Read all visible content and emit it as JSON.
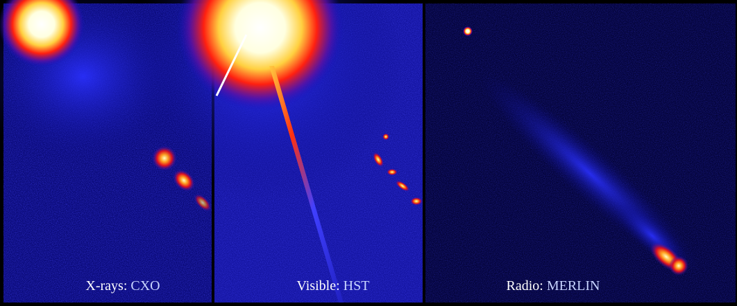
{
  "panels": [
    {
      "band": "X-rays:",
      "instrument": "CXO"
    },
    {
      "band": "Visible:",
      "instrument": "HST"
    },
    {
      "band": "Radio:",
      "instrument": "MERLIN"
    }
  ]
}
